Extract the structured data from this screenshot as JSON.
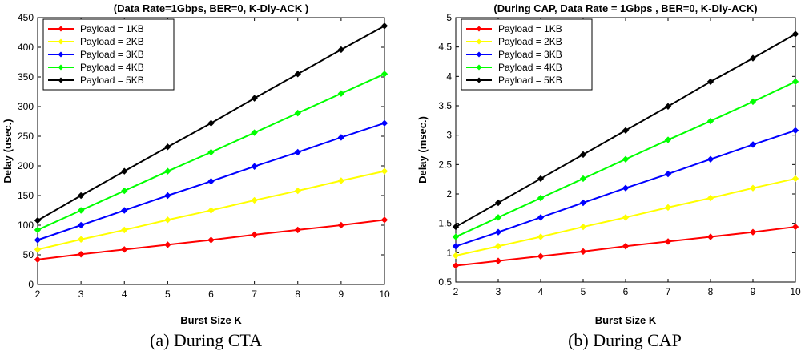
{
  "chart_data": [
    {
      "type": "line",
      "title": "(Data Rate=1Gbps, BER=0, K-Dly-ACK )",
      "xlabel": "Burst Size K",
      "ylabel": "Delay (usec.)",
      "xlim": [
        2,
        10
      ],
      "ylim": [
        0,
        450
      ],
      "xticks": [
        2,
        3,
        4,
        5,
        6,
        7,
        8,
        9,
        10
      ],
      "yticks": [
        0,
        50,
        100,
        150,
        200,
        250,
        300,
        350,
        400,
        450
      ],
      "ytick_labels": [
        "0",
        "50",
        "100",
        "150",
        "200",
        "250",
        "300",
        "350",
        "400",
        "450"
      ],
      "grid": true,
      "legend_position": "top-left",
      "caption": "(a) During CTA",
      "x": [
        2,
        3,
        4,
        5,
        6,
        7,
        8,
        9,
        10
      ],
      "series": [
        {
          "name": "Payload = 1KB",
          "color": "#ff0000",
          "values": [
            42,
            51,
            59,
            67,
            75,
            84,
            92,
            100,
            109
          ]
        },
        {
          "name": "Payload = 2KB",
          "color": "#ffff00",
          "values": [
            59,
            76,
            92,
            109,
            125,
            142,
            158,
            175,
            191
          ]
        },
        {
          "name": "Payload = 3KB",
          "color": "#0000ff",
          "values": [
            75,
            100,
            125,
            150,
            174,
            199,
            223,
            248,
            272
          ]
        },
        {
          "name": "Payload = 4KB",
          "color": "#00ff00",
          "values": [
            92,
            125,
            158,
            191,
            223,
            256,
            289,
            322,
            355
          ]
        },
        {
          "name": "Payload = 5KB",
          "color": "#000000",
          "values": [
            108,
            150,
            191,
            232,
            272,
            314,
            355,
            396,
            436
          ]
        }
      ]
    },
    {
      "type": "line",
      "title": "(During CAP, Data Rate = 1Gbps , BER=0, K-Dly-ACK)",
      "xlabel": "Burst Size K",
      "ylabel": "Delay (msec.)",
      "xlim": [
        2,
        10
      ],
      "ylim": [
        0.5,
        5
      ],
      "xticks": [
        2,
        3,
        4,
        5,
        6,
        7,
        8,
        9,
        10
      ],
      "yticks": [
        0.5,
        1,
        1.5,
        2,
        2.5,
        3,
        3.5,
        4,
        4.5,
        5
      ],
      "ytick_labels": [
        "0.5",
        "1",
        "1.5",
        "2",
        "2.5",
        "3",
        "3.5",
        "4",
        "4.5",
        "5"
      ],
      "grid": true,
      "legend_position": "top-left",
      "caption": "(b) During CAP",
      "x": [
        2,
        3,
        4,
        5,
        6,
        7,
        8,
        9,
        10
      ],
      "series": [
        {
          "name": "Payload = 1KB",
          "color": "#ff0000",
          "values": [
            0.78,
            0.86,
            0.94,
            1.02,
            1.11,
            1.19,
            1.27,
            1.35,
            1.44
          ]
        },
        {
          "name": "Payload = 2KB",
          "color": "#ffff00",
          "values": [
            0.95,
            1.11,
            1.27,
            1.44,
            1.6,
            1.77,
            1.93,
            2.1,
            2.26
          ]
        },
        {
          "name": "Payload = 3KB",
          "color": "#0000ff",
          "values": [
            1.11,
            1.35,
            1.6,
            1.85,
            2.1,
            2.34,
            2.59,
            2.84,
            3.08
          ]
        },
        {
          "name": "Payload = 4KB",
          "color": "#00ff00",
          "values": [
            1.27,
            1.6,
            1.93,
            2.26,
            2.59,
            2.92,
            3.24,
            3.57,
            3.91
          ]
        },
        {
          "name": "Payload = 5KB",
          "color": "#000000",
          "values": [
            1.44,
            1.85,
            2.26,
            2.67,
            3.08,
            3.49,
            3.91,
            4.31,
            4.72
          ]
        }
      ]
    }
  ]
}
